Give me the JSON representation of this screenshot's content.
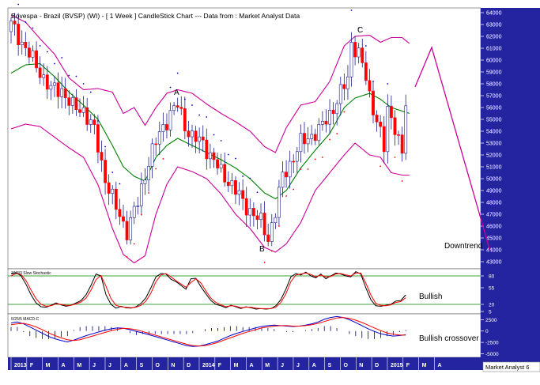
{
  "header": {
    "title": "Bovespa - Brazil (BVSP) (WI) -  [ 1 Week ] CandleStick Chart --- Data from : Market Analyst Data"
  },
  "footer": {
    "watermark": "Market Analyst 6"
  },
  "colors": {
    "background": "#ffffff",
    "bollinger": "#cc0099",
    "moving_average": "#008000",
    "psar": "#0000cc",
    "up_candle": "#ffffff",
    "down_candle": "#ff0000",
    "candle_outline": "#1f1f8f",
    "annotation": "#cc0099",
    "stoch_k": "#000000",
    "stoch_d": "#ff0000",
    "macd_line": "#0000cc",
    "signal_line": "#ff0000",
    "histogram": "#000080",
    "axis_panel": "#2424a0",
    "axis_text": "#ffffff"
  },
  "chart_data": [
    {
      "type": "candlestick",
      "title": "Bovespa - Brazil (BVSP) (WI) -  [ 1 Week ] CandleStick Chart --- Data from : Market Analyst Data",
      "x_ticks": [
        "2013",
        "F",
        "M",
        "A",
        "M",
        "J",
        "J",
        "A",
        "S",
        "O",
        "N",
        "D",
        "2014",
        "F",
        "M",
        "A",
        "M",
        "J",
        "J",
        "A",
        "S",
        "O",
        "N",
        "D",
        "2015",
        "F",
        "M",
        "A"
      ],
      "y_ticks": [
        64000,
        63000,
        62000,
        61000,
        60000,
        59000,
        58000,
        57000,
        56000,
        55000,
        54000,
        53000,
        52000,
        51000,
        50000,
        49000,
        48000,
        47000,
        46000,
        45000,
        44000,
        43000
      ],
      "ylim": [
        42400,
        64400
      ],
      "grid": false,
      "annotations": [
        "A",
        "B",
        "C",
        "Downtrend"
      ],
      "close_path": [
        [
          0,
          63000
        ],
        [
          4,
          61000
        ],
        [
          8,
          59000
        ],
        [
          11,
          57500
        ],
        [
          14,
          57500
        ],
        [
          17,
          56000
        ],
        [
          20,
          55800
        ],
        [
          23,
          54000
        ],
        [
          26,
          50000
        ],
        [
          29,
          47500
        ],
        [
          32,
          45600
        ],
        [
          35,
          48000
        ],
        [
          38,
          51500
        ],
        [
          41,
          53800
        ],
        [
          44,
          55500
        ],
        [
          46,
          56200
        ],
        [
          48,
          54500
        ],
        [
          50,
          53500
        ],
        [
          53,
          53000
        ],
        [
          55,
          52000
        ],
        [
          58,
          50500
        ],
        [
          61,
          49500
        ],
        [
          64,
          48000
        ],
        [
          67,
          47000
        ],
        [
          69,
          46300
        ],
        [
          71,
          45000
        ],
        [
          73,
          47200
        ],
        [
          75,
          50200
        ],
        [
          78,
          51800
        ],
        [
          80,
          53000
        ],
        [
          82,
          53500
        ],
        [
          85,
          54000
        ],
        [
          88,
          55500
        ],
        [
          90,
          56500
        ],
        [
          93,
          58500
        ],
        [
          94,
          61500
        ],
        [
          96,
          60500
        ],
        [
          98,
          58500
        ],
        [
          99,
          57000
        ],
        [
          101,
          55000
        ],
        [
          103,
          52500
        ],
        [
          104,
          55800
        ],
        [
          106,
          54500
        ],
        [
          108,
          52000
        ],
        [
          109,
          56200
        ]
      ],
      "bollinger_upper_path": [
        [
          0,
          63800
        ],
        [
          4,
          63200
        ],
        [
          8,
          61800
        ],
        [
          12,
          60500
        ],
        [
          16,
          58500
        ],
        [
          20,
          57500
        ],
        [
          24,
          57600
        ],
        [
          28,
          57300
        ],
        [
          31,
          55500
        ],
        [
          34,
          56000
        ],
        [
          37,
          54500
        ],
        [
          40,
          56000
        ],
        [
          43,
          57200
        ],
        [
          46,
          57500
        ],
        [
          50,
          57200
        ],
        [
          54,
          56300
        ],
        [
          58,
          55500
        ],
        [
          62,
          54800
        ],
        [
          66,
          54000
        ],
        [
          70,
          52700
        ],
        [
          73,
          52200
        ],
        [
          76,
          54300
        ],
        [
          80,
          56200
        ],
        [
          84,
          56500
        ],
        [
          88,
          58200
        ],
        [
          92,
          61200
        ],
        [
          95,
          62000
        ],
        [
          99,
          62100
        ],
        [
          102,
          61500
        ],
        [
          105,
          61900
        ],
        [
          108,
          61900
        ],
        [
          110,
          61400
        ]
      ],
      "bollinger_lower_path": [
        [
          0,
          54200
        ],
        [
          4,
          54600
        ],
        [
          8,
          54400
        ],
        [
          12,
          53500
        ],
        [
          16,
          52600
        ],
        [
          20,
          51800
        ],
        [
          24,
          49500
        ],
        [
          28,
          45800
        ],
        [
          31,
          43600
        ],
        [
          34,
          42900
        ],
        [
          37,
          43500
        ],
        [
          40,
          47000
        ],
        [
          43,
          49500
        ],
        [
          46,
          51000
        ],
        [
          50,
          50600
        ],
        [
          54,
          50000
        ],
        [
          58,
          48700
        ],
        [
          62,
          47000
        ],
        [
          66,
          45800
        ],
        [
          70,
          44200
        ],
        [
          73,
          43800
        ],
        [
          76,
          44500
        ],
        [
          80,
          46300
        ],
        [
          84,
          49000
        ],
        [
          88,
          50500
        ],
        [
          92,
          52000
        ],
        [
          95,
          53000
        ],
        [
          99,
          52000
        ],
        [
          102,
          51800
        ],
        [
          105,
          50500
        ],
        [
          108,
          50300
        ],
        [
          110,
          50300
        ]
      ],
      "moving_average_path": [
        [
          0,
          58900
        ],
        [
          4,
          59600
        ],
        [
          8,
          59700
        ],
        [
          12,
          58600
        ],
        [
          16,
          57300
        ],
        [
          20,
          56200
        ],
        [
          24,
          55000
        ],
        [
          28,
          52800
        ],
        [
          31,
          51000
        ],
        [
          34,
          50200
        ],
        [
          37,
          49800
        ],
        [
          40,
          51800
        ],
        [
          43,
          52800
        ],
        [
          46,
          53400
        ],
        [
          50,
          52800
        ],
        [
          54,
          52200
        ],
        [
          58,
          51600
        ],
        [
          62,
          50900
        ],
        [
          66,
          50000
        ],
        [
          70,
          48800
        ],
        [
          73,
          48300
        ],
        [
          76,
          49000
        ],
        [
          80,
          50900
        ],
        [
          84,
          52400
        ],
        [
          88,
          53800
        ],
        [
          92,
          56000
        ],
        [
          95,
          56800
        ],
        [
          99,
          57200
        ],
        [
          102,
          56700
        ],
        [
          105,
          56000
        ],
        [
          108,
          55700
        ],
        [
          110,
          55500
        ]
      ]
    },
    {
      "type": "line",
      "title": "10/3/3 Slow Stochastic",
      "y_ticks": [
        80,
        55,
        20,
        5
      ],
      "ylim": [
        0,
        95
      ],
      "reference_lines": [
        80,
        20
      ],
      "annotation": "Bullish",
      "series": [
        {
          "name": "%K",
          "values": [
            85,
            87,
            80,
            62,
            40,
            23,
            15,
            14,
            18,
            23,
            19,
            16,
            18,
            23,
            28,
            40,
            60,
            84,
            80,
            40,
            20,
            12,
            16,
            13,
            12,
            15,
            22,
            34,
            55,
            78,
            85,
            84,
            73,
            68,
            60,
            52,
            74,
            75,
            57,
            42,
            28,
            20,
            17,
            13,
            18,
            15,
            11,
            15,
            13,
            10,
            11,
            10,
            11,
            17,
            30,
            52,
            78,
            85,
            82,
            88,
            80,
            76,
            84,
            74,
            80,
            86,
            84,
            80,
            78,
            89,
            84,
            55,
            30,
            17,
            16,
            18,
            20,
            27,
            28,
            40
          ]
        },
        {
          "name": "%D",
          "values": [
            80,
            85,
            83,
            70,
            50,
            32,
            20,
            16,
            17,
            21,
            20,
            18,
            18,
            21,
            25,
            33,
            50,
            72,
            81,
            58,
            32,
            18,
            15,
            14,
            13,
            14,
            18,
            27,
            44,
            68,
            82,
            85,
            78,
            70,
            63,
            56,
            66,
            74,
            65,
            48,
            33,
            24,
            19,
            15,
            17,
            16,
            13,
            14,
            14,
            12,
            11,
            11,
            11,
            14,
            24,
            42,
            68,
            82,
            84,
            86,
            83,
            78,
            82,
            78,
            79,
            84,
            85,
            82,
            80,
            86,
            86,
            65,
            40,
            22,
            18,
            17,
            19,
            24,
            26,
            34
          ]
        }
      ]
    },
    {
      "type": "line",
      "title": "5/25/5 MACD-C",
      "y_ticks": [
        2500,
        0,
        -2500,
        -5000
      ],
      "ylim": [
        -5800,
        3800
      ],
      "annotation": "Bullish crossover",
      "series": [
        {
          "name": "MACD",
          "values": [
            1800,
            2000,
            1600,
            900,
            200,
            -500,
            -1200,
            -1700,
            -2100,
            -2400,
            -2000,
            -1500,
            -1000,
            -600,
            -200,
            200,
            500,
            700,
            600,
            300,
            -100,
            -400,
            -800,
            -1200,
            -1600,
            -2000,
            -2400,
            -2800,
            -3200,
            -3400,
            -3300,
            -3000,
            -2600,
            -2200,
            -1600,
            -1000,
            -500,
            -100,
            300,
            700,
            1000,
            1200,
            1300,
            1200,
            1100,
            1000,
            1100,
            1300,
            1600,
            2000,
            2600,
            3000,
            3200,
            3000,
            2500,
            1900,
            1200,
            500,
            -100,
            -600,
            -900,
            -1100,
            -1000,
            -800
          ]
        },
        {
          "name": "Signal",
          "values": [
            1400,
            1600,
            1700,
            1400,
            900,
            300,
            -400,
            -1000,
            -1500,
            -1900,
            -2100,
            -1900,
            -1500,
            -1100,
            -700,
            -300,
            100,
            400,
            600,
            500,
            300,
            -100,
            -500,
            -900,
            -1300,
            -1700,
            -2100,
            -2500,
            -2900,
            -3200,
            -3300,
            -3200,
            -2900,
            -2500,
            -2000,
            -1500,
            -1000,
            -500,
            -100,
            300,
            700,
            900,
            1100,
            1200,
            1200,
            1100,
            1100,
            1200,
            1400,
            1700,
            2100,
            2500,
            2900,
            3000,
            2800,
            2400,
            1900,
            1300,
            700,
            100,
            -400,
            -700,
            -900,
            -900
          ]
        }
      ]
    }
  ]
}
